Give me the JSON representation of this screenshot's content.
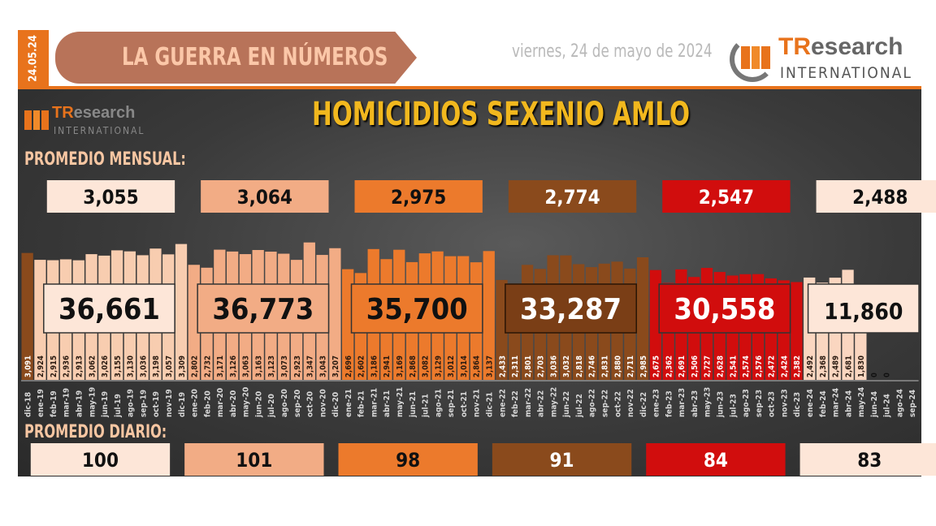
{
  "header": {
    "date_tag": "24.05.24",
    "banner": "LA GUERRA EN NÚMEROS",
    "date_line": "viernes, 24 de mayo de 2024",
    "logo_tr": "TR",
    "logo_research": "esearch",
    "logo_intl": "INTERNATIONAL"
  },
  "title": "HOMICIDIOS SEXENIO AMLO",
  "labels": {
    "monthly": "PROMEDIO MENSUAL:",
    "daily": "PROMEDIO DIARIO:"
  },
  "colors": {
    "dic18": "#8a4a1c",
    "y2019": "#f8cdb0",
    "y2020": "#f2ac85",
    "y2021": "#ec7a2c",
    "y2022": "#8a4a1c",
    "y2023": "#d10d0d",
    "y2024": "#fad6c0",
    "box2019": "#fde6d8",
    "box2024": "#fde6d8"
  },
  "chart_data": {
    "type": "bar",
    "title": "HOMICIDIOS SEXENIO AMLO",
    "categories": [
      "dic-18",
      "ene-19",
      "feb-19",
      "mar-19",
      "abr-19",
      "may-19",
      "jun-19",
      "jul-19",
      "ago-19",
      "sep-19",
      "oct-19",
      "nov-19",
      "dic-19",
      "ene-20",
      "feb-20",
      "mar-20",
      "abr-20",
      "may-20",
      "jun-20",
      "jul-20",
      "ago-20",
      "sep-20",
      "oct-20",
      "nov-20",
      "dic-20",
      "ene-21",
      "feb-21",
      "mar-21",
      "abr-21",
      "may-21",
      "jun-21",
      "jul-21",
      "ago-21",
      "sep-21",
      "oct-21",
      "nov-21",
      "dic-21",
      "ene-22",
      "feb-22",
      "mar-22",
      "abr-22",
      "may-22",
      "jun-22",
      "jul-22",
      "ago-22",
      "sep-22",
      "oct-22",
      "nov-22",
      "dic-22",
      "ene-23",
      "feb-23",
      "mar-23",
      "abr-23",
      "may-23",
      "jun-23",
      "jul-23",
      "ago-23",
      "sep-23",
      "oct-23",
      "nov-23",
      "dic-23",
      "ene-24",
      "feb-24",
      "mar-24",
      "abr-24",
      "may-24",
      "jun-24",
      "jul-24",
      "ago-24",
      "sep-24"
    ],
    "values": [
      3091,
      2924,
      2915,
      2936,
      2913,
      3062,
      3026,
      3155,
      3130,
      3036,
      3198,
      3057,
      3309,
      2802,
      2732,
      3171,
      3126,
      3063,
      3163,
      3123,
      3073,
      2923,
      3347,
      3043,
      3207,
      2696,
      2602,
      3186,
      2941,
      3169,
      2868,
      3082,
      3129,
      3012,
      3014,
      2864,
      3137,
      2433,
      2311,
      2801,
      2703,
      3036,
      3032,
      2818,
      2746,
      2831,
      2880,
      2711,
      2985,
      2675,
      2362,
      2691,
      2506,
      2727,
      2628,
      2541,
      2574,
      2576,
      2472,
      2424,
      2382,
      2492,
      2368,
      2489,
      2681,
      1830,
      0,
      0,
      null,
      null
    ],
    "value_labels": [
      "3,091",
      "2,924",
      "2,915",
      "2,936",
      "2,913",
      "3,062",
      "3,026",
      "3,155",
      "3,130",
      "3,036",
      "3,198",
      "3,057",
      "3,309",
      "2,802",
      "2,732",
      "3,171",
      "3,126",
      "3,063",
      "3,163",
      "3,123",
      "3,073",
      "2,923",
      "3,347",
      "3,043",
      "3,207",
      "2,696",
      "2,602",
      "3,186",
      "2,941",
      "3,169",
      "2,868",
      "3,082",
      "3,129",
      "3,012",
      "3,014",
      "2,864",
      "3,137",
      "2,433",
      "2,311",
      "2,801",
      "2,703",
      "3,036",
      "3,032",
      "2,818",
      "2,746",
      "2,831",
      "2,880",
      "2,711",
      "2,985",
      "2,675",
      "2,362",
      "2,691",
      "2,506",
      "2,727",
      "2,628",
      "2,541",
      "2,574",
      "2,576",
      "2,472",
      "2,424",
      "2,382",
      "2,492",
      "2,368",
      "2,489",
      "2,681",
      "1,830",
      "0",
      "0",
      "",
      ""
    ],
    "ylim": [
      0,
      3400
    ],
    "years": [
      {
        "year": "2019",
        "total": "36,661",
        "monthly_avg": "3,055",
        "daily_avg": "100"
      },
      {
        "year": "2020",
        "total": "36,773",
        "monthly_avg": "3,064",
        "daily_avg": "101"
      },
      {
        "year": "2021",
        "total": "35,700",
        "monthly_avg": "2,975",
        "daily_avg": "98"
      },
      {
        "year": "2022",
        "total": "33,287",
        "monthly_avg": "2,774",
        "daily_avg": "91"
      },
      {
        "year": "2023",
        "total": "30,558",
        "monthly_avg": "2,547",
        "daily_avg": "84"
      },
      {
        "year": "2024",
        "total": "11,860",
        "monthly_avg": "2,488",
        "daily_avg": "83"
      }
    ]
  }
}
